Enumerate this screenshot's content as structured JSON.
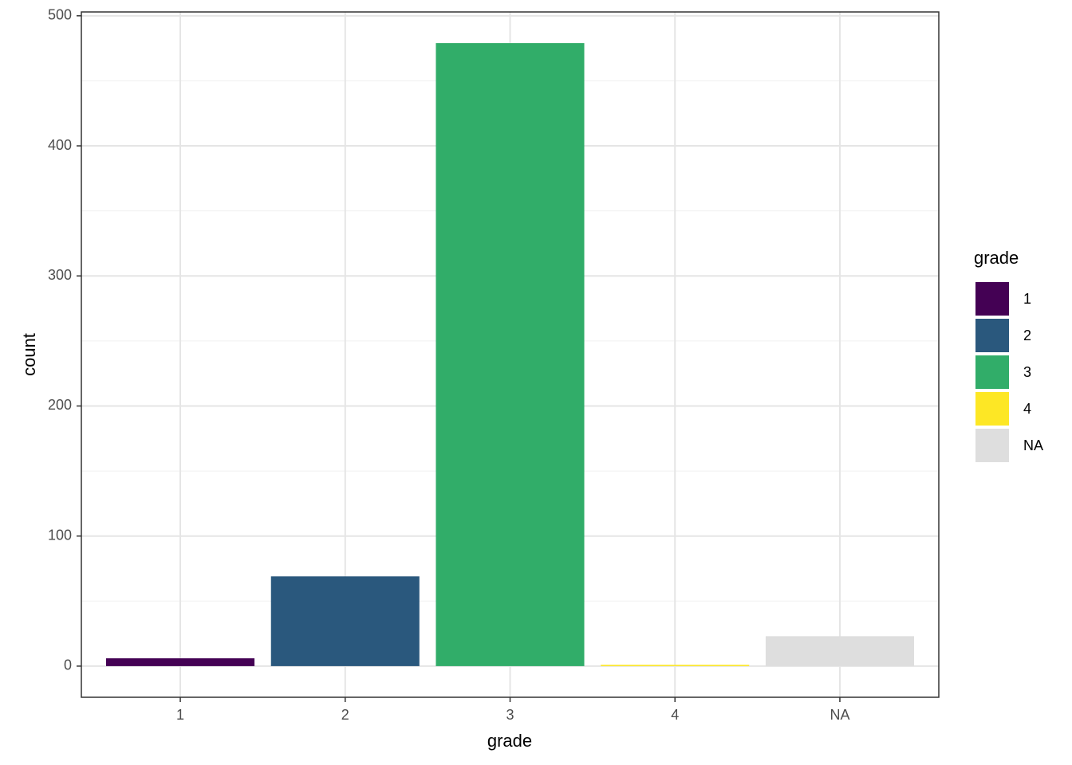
{
  "chart_data": {
    "type": "bar",
    "x_label": "grade",
    "y_label": "count",
    "legend_title": "grade",
    "categories": [
      "1",
      "2",
      "3",
      "4",
      "NA"
    ],
    "values": [
      6,
      69,
      479,
      1,
      23
    ],
    "colors": [
      "#440154",
      "#2a587d",
      "#31ad69",
      "#fde725",
      "#dedede"
    ],
    "ylim": [
      -23.95,
      502.95
    ],
    "yticks": [
      0,
      100,
      200,
      300,
      400,
      500
    ],
    "y_minor_grid": [
      50,
      150,
      250,
      350,
      450
    ],
    "grid": true,
    "legend": "right"
  }
}
